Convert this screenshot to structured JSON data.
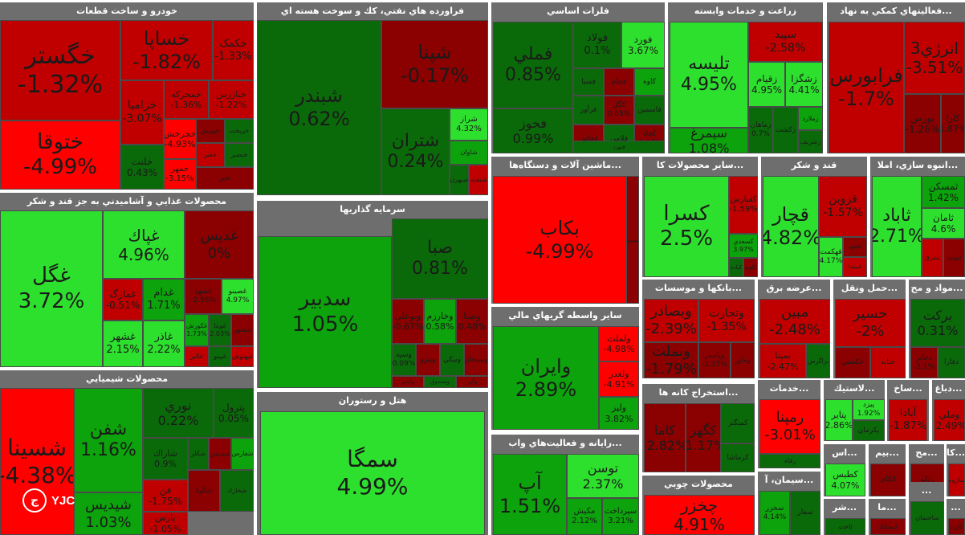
{
  "colors": {
    "strong_pos": "#2ee02e",
    "pos": "#0ca30c",
    "weak_pos": "#0a6a0a",
    "weak_neg": "#8b0000",
    "neg": "#c00000",
    "strong_neg": "#ff0000",
    "header_bg": "#6e6e6e"
  },
  "logo": {
    "mark": "ج",
    "text": "YJC"
  },
  "sectors": [
    {
      "name": "خودرو و ساخت قطعات",
      "cells": [
        {
          "sym": "خگستر",
          "chg": "-1.32%"
        },
        {
          "sym": "خساپا",
          "chg": "-1.82%"
        },
        {
          "sym": "ختوقا",
          "chg": "-4.99%"
        },
        {
          "sym": "خکمک",
          "chg": "-1.33%"
        },
        {
          "sym": "خزاميا",
          "chg": "-3.07%"
        },
        {
          "sym": "خمحركه",
          "chg": "-1.36%"
        },
        {
          "sym": "خبازرس",
          "chg": "-1.22%"
        },
        {
          "sym": "خچرخش",
          "chg": "-4.93%"
        },
        {
          "sym": "خلنت",
          "chg": "0.43%"
        },
        {
          "sym": "خمهر",
          "chg": "-3.15%"
        },
        {
          "sym": "خپويش",
          "chg": ""
        },
        {
          "sym": "خريخت",
          "chg": ""
        },
        {
          "sym": "خفنر",
          "chg": ""
        },
        {
          "sym": "خنصير",
          "chg": ""
        },
        {
          "sym": "خاور",
          "chg": ""
        }
      ]
    },
    {
      "name": "فراورده هاي نفتي، كك و سوخت هسته اي",
      "cells": [
        {
          "sym": "شبندر",
          "chg": "0.62%"
        },
        {
          "sym": "شپنا",
          "chg": "-0.17%"
        },
        {
          "sym": "شتران",
          "chg": "0.24%"
        },
        {
          "sym": "شراز",
          "chg": "4.32%"
        },
        {
          "sym": "شاوان",
          "chg": ""
        },
        {
          "sym": "شبهرن",
          "chg": ""
        },
        {
          "sym": "شنفت",
          "chg": ""
        }
      ]
    },
    {
      "name": "فلزات اساسي",
      "cells": [
        {
          "sym": "فملي",
          "chg": "0.85%"
        },
        {
          "sym": "فولاد",
          "chg": "0.1%"
        },
        {
          "sym": "فورد",
          "chg": "3.67%"
        },
        {
          "sym": "فخوز",
          "chg": "0.99%"
        },
        {
          "sym": "فسپا",
          "chg": ""
        },
        {
          "sym": "فجام",
          "chg": ""
        },
        {
          "sym": "كاوه",
          "chg": ""
        },
        {
          "sym": "فرآور",
          "chg": ""
        },
        {
          "sym": "كگل",
          "chg": "0.65%"
        },
        {
          "sym": "فاسمين",
          "chg": ""
        },
        {
          "sym": "فخاس",
          "chg": ""
        },
        {
          "sym": "فلامي",
          "chg": ""
        },
        {
          "sym": "كچاد",
          "chg": "-0.27%"
        },
        {
          "sym": "فنورد",
          "chg": ""
        }
      ]
    },
    {
      "name": "زراعت و خدمات وابسته",
      "cells": [
        {
          "sym": "تليسه",
          "chg": "4.95%"
        },
        {
          "sym": "سپيد",
          "chg": "-2.58%"
        },
        {
          "sym": "زقيام",
          "chg": "4.95%"
        },
        {
          "sym": "زشگزا",
          "chg": "4.41%"
        },
        {
          "sym": "سيمرغ",
          "chg": "1.08%"
        },
        {
          "sym": "زماهان",
          "chg": "0.7%"
        },
        {
          "sym": "زكشت",
          "chg": ""
        },
        {
          "sym": "زملارد",
          "chg": ""
        },
        {
          "sym": "زشريف",
          "chg": ""
        }
      ]
    },
    {
      "name": "فعاليتهاي كمكي به نهاد...",
      "cells": [
        {
          "sym": "فرابورس",
          "chg": "-1.7%"
        },
        {
          "sym": "انرژي3",
          "chg": "-3.51%"
        },
        {
          "sym": "بورس",
          "chg": "-1.26%"
        },
        {
          "sym": "كارا",
          "chg": "1.87%"
        }
      ]
    },
    {
      "name": "محصولات غذايي و آشاميدني به جز قند و شكر",
      "cells": [
        {
          "sym": "غگل",
          "chg": "3.72%"
        },
        {
          "sym": "غپاك",
          "chg": "4.96%"
        },
        {
          "sym": "غديس",
          "chg": "0%"
        },
        {
          "sym": "غمارگ",
          "chg": "-0.51%"
        },
        {
          "sym": "غدام",
          "chg": "1.71%"
        },
        {
          "sym": "غشهد",
          "chg": "-2.56%"
        },
        {
          "sym": "غصينو",
          "chg": "4.97%"
        },
        {
          "sym": "غشهر",
          "chg": "2.15%"
        },
        {
          "sym": "غاذر",
          "chg": "2.22%"
        },
        {
          "sym": "غكورش",
          "chg": "1.73%"
        },
        {
          "sym": "غويتا",
          "chg": "2.03%"
        },
        {
          "sym": "غبشهر",
          "chg": ""
        },
        {
          "sym": "غالبر",
          "chg": ""
        },
        {
          "sym": "غپينو",
          "chg": ""
        },
        {
          "sym": "غبهنوش",
          "chg": ""
        }
      ]
    },
    {
      "name": "سرمايه گذاريها",
      "cells": [
        {
          "sym": "سدبير",
          "chg": "1.05%"
        },
        {
          "sym": "صبا",
          "chg": "0.81%"
        },
        {
          "sym": "وبوعلي",
          "chg": "-0.67%"
        },
        {
          "sym": "وخارزم",
          "chg": "0.58%"
        },
        {
          "sym": "وصنا",
          "chg": "0.48%"
        },
        {
          "sym": "وسپه",
          "chg": "0.09%"
        },
        {
          "sym": "وپترو",
          "chg": ""
        },
        {
          "sym": "ونيكي",
          "chg": ""
        },
        {
          "sym": "وسبحان",
          "chg": ""
        },
        {
          "sym": "وغدير",
          "chg": ""
        },
        {
          "sym": "وصندوق",
          "chg": ""
        },
        {
          "sym": "واتي",
          "chg": ""
        }
      ]
    },
    {
      "name": "ماشين آلات و دستگاه‌ها...",
      "cells": [
        {
          "sym": "بكاب",
          "chg": "-4.99%"
        },
        {
          "sym": "تپمپي",
          "chg": ""
        }
      ]
    },
    {
      "name": "ساير محصولات كا...",
      "cells": [
        {
          "sym": "كسرا",
          "chg": "2.5%"
        },
        {
          "sym": "كفپارس",
          "chg": "-1.59%"
        },
        {
          "sym": "كسعدي",
          "chg": "3.97%"
        },
        {
          "sym": "كباده",
          "chg": ""
        },
        {
          "sym": "كلوند",
          "chg": ""
        }
      ]
    },
    {
      "name": "قند و شكر",
      "cells": [
        {
          "sym": "قچار",
          "chg": "4.82%"
        },
        {
          "sym": "قزوين",
          "chg": "-1.57%"
        },
        {
          "sym": "قهكمت",
          "chg": "4.17%"
        },
        {
          "sym": "قشهد",
          "chg": ""
        },
        {
          "sym": "قنيشا",
          "chg": ""
        }
      ]
    },
    {
      "name": "انبوه سازي، املا...",
      "cells": [
        {
          "sym": "ثاباد",
          "chg": "2.71%"
        },
        {
          "sym": "ثمسكن",
          "chg": "1.42%"
        },
        {
          "sym": "ثامان",
          "chg": "4.6%"
        },
        {
          "sym": "ثشرق",
          "chg": ""
        },
        {
          "sym": "ثنوسا",
          "chg": ""
        }
      ]
    },
    {
      "name": "ساير واسطه گريهاي مالي",
      "cells": [
        {
          "sym": "وايران",
          "chg": "2.89%"
        },
        {
          "sym": "ولملت",
          "chg": "-4.98%"
        },
        {
          "sym": "ولغدر",
          "chg": "-4.91%"
        },
        {
          "sym": "وليز",
          "chg": "3.82%"
        }
      ]
    },
    {
      "name": "بانكها و موسسات...",
      "cells": [
        {
          "sym": "وبصادر",
          "chg": "-2.39%"
        },
        {
          "sym": "وتجارت",
          "chg": "-1.35%"
        },
        {
          "sym": "وبملت",
          "chg": "-1.79%"
        },
        {
          "sym": "وپاسار",
          "chg": "-2.37%"
        },
        {
          "sym": "وخاور",
          "chg": ""
        }
      ]
    },
    {
      "name": "عرضه برق...",
      "cells": [
        {
          "sym": "مبين",
          "chg": "-2.48%"
        },
        {
          "sym": "بمپنا",
          "chg": "-2.47%"
        },
        {
          "sym": "بزاگرس",
          "chg": ""
        }
      ]
    },
    {
      "name": "حمل ونقل...",
      "cells": [
        {
          "sym": "حسير",
          "chg": "-2%"
        },
        {
          "sym": "حكشتي",
          "chg": ""
        },
        {
          "sym": "حتايد",
          "chg": ""
        }
      ]
    },
    {
      "name": "مواد و مح...",
      "cells": [
        {
          "sym": "بركت",
          "chg": "0.31%"
        },
        {
          "sym": "دجابر",
          "chg": "-2.1%"
        },
        {
          "sym": "دفارا",
          "chg": ""
        }
      ]
    },
    {
      "name": "استخراج كانه ها...",
      "cells": [
        {
          "sym": "كاما",
          "chg": "-2.82%"
        },
        {
          "sym": "كگهر",
          "chg": "-1.17%"
        },
        {
          "sym": "كمنگنز",
          "chg": ""
        },
        {
          "sym": "كرماشا",
          "chg": ""
        }
      ]
    },
    {
      "name": "خدمات...",
      "cells": [
        {
          "sym": "رمپنا",
          "chg": "-3.01%"
        },
        {
          "sym": "رفاه",
          "chg": ""
        }
      ]
    },
    {
      "name": "لاستيك...",
      "cells": [
        {
          "sym": "پتاير",
          "chg": "2.86%"
        },
        {
          "sym": "پيزد",
          "chg": "1.92%"
        },
        {
          "sym": "پكرمان",
          "chg": ""
        }
      ]
    },
    {
      "name": "ساخ...",
      "cells": [
        {
          "sym": "آبادا",
          "chg": "-1.87%"
        }
      ]
    },
    {
      "name": "دباغ...",
      "cells": [
        {
          "sym": "وملي",
          "chg": "-2.49%"
        }
      ]
    },
    {
      "name": "هتل و رستوران",
      "cells": [
        {
          "sym": "سمگا",
          "chg": "4.99%"
        }
      ]
    },
    {
      "name": "رايانه و فعاليت‌هاي واب...",
      "cells": [
        {
          "sym": "آپ",
          "chg": "1.51%"
        },
        {
          "sym": "توسن",
          "chg": "2.37%"
        },
        {
          "sym": "مكيش",
          "chg": "2.12%"
        },
        {
          "sym": "سپرداخت",
          "chg": "3.21%"
        }
      ]
    },
    {
      "name": "محصولات چوبي",
      "cells": [
        {
          "sym": "چخزر",
          "chg": "4.91%"
        }
      ]
    },
    {
      "name": "سيمان، آ...",
      "cells": [
        {
          "sym": "سخزر",
          "chg": "4.14%"
        },
        {
          "sym": "سفار",
          "chg": ""
        }
      ]
    },
    {
      "name": "اس...",
      "cells": [
        {
          "sym": "كطبس",
          "chg": "4.07%"
        }
      ]
    },
    {
      "name": "بيم...",
      "cells": [
        {
          "sym": "اتكاي",
          "chg": ""
        }
      ]
    },
    {
      "name": "مح...",
      "cells": [
        {
          "sym": "رتكو",
          "chg": ""
        }
      ]
    },
    {
      "name": "كا...",
      "cells": [
        {
          "sym": "ساروم",
          "chg": ""
        }
      ]
    },
    {
      "name": "شر...",
      "cells": [
        {
          "sym": "ثاخت",
          "chg": ""
        }
      ]
    },
    {
      "name": "ما...",
      "cells": [
        {
          "sym": "كيمياتك",
          "chg": ""
        }
      ]
    },
    {
      "name": "...",
      "cells": [
        {
          "sym": "ساختمان",
          "chg": ""
        }
      ]
    },
    {
      "name": "...",
      "cells": [
        {
          "sym": "كايزد",
          "chg": ""
        }
      ]
    },
    {
      "name": "محصولات شيميايي",
      "cells": [
        {
          "sym": "شسينا",
          "chg": "-4.38%"
        },
        {
          "sym": "شفن",
          "chg": "1.16%"
        },
        {
          "sym": "نوري",
          "chg": "0.22%"
        },
        {
          "sym": "پترول",
          "chg": "0.05%"
        },
        {
          "sym": "شاراك",
          "chg": "0.9%"
        },
        {
          "sym": "شيديس",
          "chg": "1.03%"
        },
        {
          "sym": "فن",
          "chg": "-1.75%"
        },
        {
          "sym": "پارس",
          "chg": "-1.05%"
        },
        {
          "sym": "شكلر",
          "chg": ""
        },
        {
          "sym": "شپديس",
          "chg": ""
        },
        {
          "sym": "شفارس",
          "chg": ""
        },
        {
          "sym": "شگويا",
          "chg": ""
        },
        {
          "sym": "شخارك",
          "chg": ""
        }
      ]
    }
  ]
}
